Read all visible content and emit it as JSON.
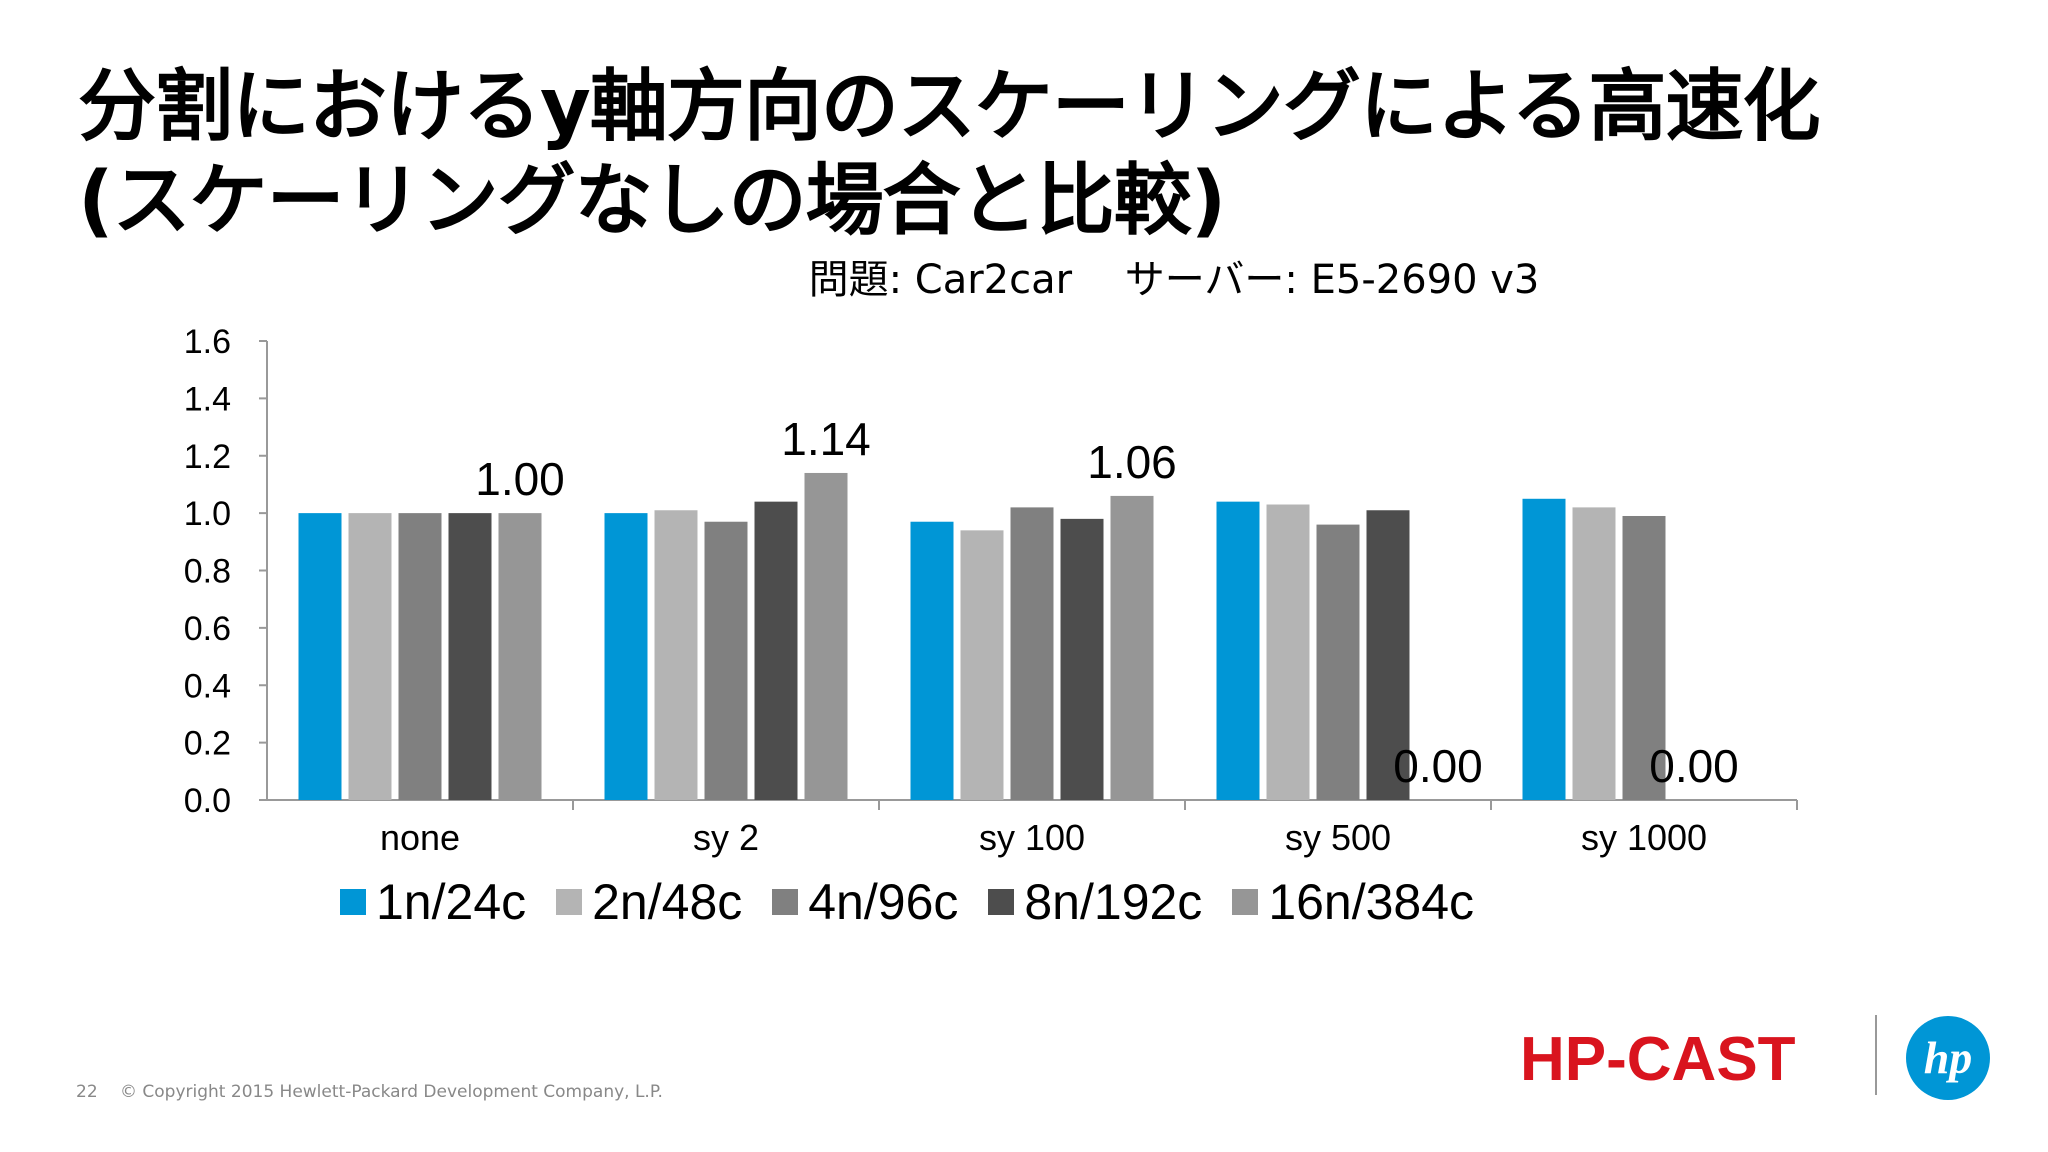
{
  "slide": {
    "title_line1": "分割におけるy軸方向のスケーリングによる高速化",
    "title_line2": "(スケーリングなしの場合と比較)",
    "subtitle": "問題: Car2car　 サーバー: E5-2690 v3"
  },
  "chart_data": {
    "type": "bar",
    "title": "問題: Car2car　 サーバー: E5-2690 v3",
    "xlabel": "",
    "ylabel": "",
    "ylim": [
      0,
      1.6
    ],
    "yticks": [
      "0.0",
      "0.2",
      "0.4",
      "0.6",
      "0.8",
      "1.0",
      "1.2",
      "1.4",
      "1.6"
    ],
    "categories": [
      "none",
      "sy 2",
      "sy 100",
      "sy 500",
      "sy 1000"
    ],
    "series": [
      {
        "name": "1n/24c",
        "color": "#0096d6",
        "values": [
          1.0,
          1.0,
          0.97,
          1.04,
          1.05
        ]
      },
      {
        "name": "2n/48c",
        "color": "#b4b4b4",
        "values": [
          1.0,
          1.01,
          0.94,
          1.03,
          1.02
        ]
      },
      {
        "name": "4n/96c",
        "color": "#808080",
        "values": [
          1.0,
          0.97,
          1.02,
          0.96,
          0.99
        ]
      },
      {
        "name": "8n/192c",
        "color": "#4d4d4d",
        "values": [
          1.0,
          1.04,
          0.98,
          1.01,
          null
        ]
      },
      {
        "name": "16n/384c",
        "color": "#969696",
        "values": [
          1.0,
          1.14,
          1.06,
          null,
          null
        ]
      }
    ],
    "data_labels": [
      {
        "category": "none",
        "series": "16n/384c",
        "text": "1.00"
      },
      {
        "category": "sy 2",
        "series": "16n/384c",
        "text": "1.14"
      },
      {
        "category": "sy 100",
        "series": "16n/384c",
        "text": "1.06"
      },
      {
        "category": "sy 500",
        "series": "16n/384c",
        "text": "0.00"
      },
      {
        "category": "sy 1000",
        "series": "8n/192c",
        "text": "0.00"
      }
    ],
    "legend_position": "bottom",
    "grid": false
  },
  "footer": {
    "page_number": "22",
    "copyright": "© Copyright 2015 Hewlett-Packard Development Company, L.P.",
    "event_logo_text": "HP-CAST",
    "brand_logo_text": "hp"
  }
}
